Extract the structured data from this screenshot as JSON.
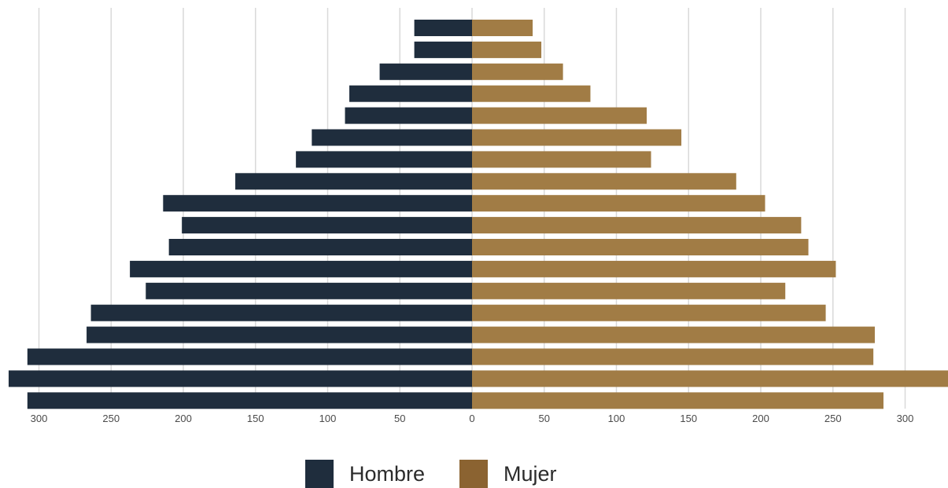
{
  "chart_data": {
    "type": "bar",
    "orientation": "horizontal-diverging",
    "title": "",
    "xlabel": "",
    "ylabel": "",
    "xlim": [
      -330,
      330
    ],
    "x_ticks": [
      -300,
      -250,
      -200,
      -150,
      -100,
      -50,
      0,
      50,
      100,
      150,
      200,
      250,
      300
    ],
    "x_tick_labels": [
      "300",
      "250",
      "200",
      "150",
      "100",
      "50",
      "0",
      "50",
      "100",
      "150",
      "200",
      "250",
      "300"
    ],
    "grid": "vertical",
    "legend_position": "bottom-center",
    "series": [
      {
        "name": "Hombre",
        "color": "#1f2d3d",
        "values": [
          40,
          40,
          64,
          85,
          88,
          111,
          122,
          164,
          214,
          201,
          210,
          237,
          226,
          264,
          267,
          308,
          321,
          308
        ]
      },
      {
        "name": "Mujer",
        "color": "#a17c45",
        "values": [
          42,
          48,
          63,
          82,
          121,
          145,
          124,
          183,
          203,
          228,
          233,
          252,
          217,
          245,
          279,
          278,
          330,
          285
        ]
      }
    ]
  },
  "legend": {
    "items": [
      {
        "label": "Hombre",
        "color": "#1f2d3d"
      },
      {
        "label": "Mujer",
        "color": "#8b6331"
      }
    ]
  }
}
